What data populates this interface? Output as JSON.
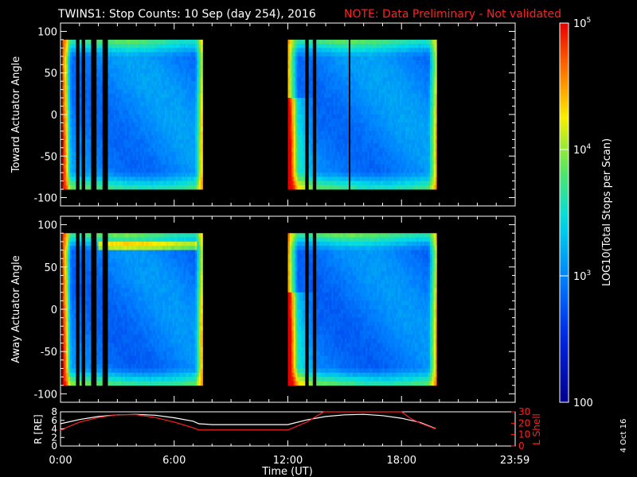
{
  "title": "TWINS1: Stop Counts: 10 Sep (day 254), 2016",
  "note": "NOTE: Data Preliminary - Not validated",
  "colors": {
    "note": "#ff2020",
    "orbit_r": "#ffffff",
    "orbit_l": "#ff2020",
    "background": "#000000",
    "axes": "#ffffff"
  },
  "colorbar": {
    "label": "LOG10(Total Stops per Scan)",
    "scale": "log",
    "range": [
      100,
      100000
    ],
    "ticks": [
      {
        "value": 100,
        "label": "100"
      },
      {
        "value": 1000,
        "label": "10^3"
      },
      {
        "value": 10000,
        "label": "10^4"
      },
      {
        "value": 100000,
        "label": "10^5"
      }
    ]
  },
  "xaxis": {
    "label": "Time (UT)",
    "range_hours": [
      0,
      24
    ],
    "ticks": [
      {
        "hour": 0,
        "label": "0:00"
      },
      {
        "hour": 6,
        "label": "6:00"
      },
      {
        "hour": 12,
        "label": "12:00"
      },
      {
        "hour": 18,
        "label": "18:00"
      },
      {
        "hour": 23.983,
        "label": "23:59"
      }
    ]
  },
  "side_stamp": "4 Oct 16",
  "chart_data": [
    {
      "type": "heatmap",
      "ylabel": "Toward Actuator Angle",
      "ylim": [
        -110,
        110
      ],
      "yticks": [
        -100,
        -50,
        0,
        50,
        100
      ],
      "angle_range": [
        -90,
        90
      ],
      "data_segments_hours": [
        [
          0.1,
          7.5
        ],
        [
          12.0,
          19.85
        ]
      ],
      "gaps_hours": [
        [
          0.85,
          1.0
        ],
        [
          1.15,
          1.35
        ],
        [
          1.65,
          1.9
        ],
        [
          2.25,
          2.5
        ],
        [
          12.9,
          13.05
        ],
        [
          13.3,
          13.45
        ],
        [
          15.2,
          15.3
        ]
      ],
      "base_level_counts": 1000,
      "edge_level_counts": 6000,
      "peak_level_counts": 50000
    },
    {
      "type": "heatmap",
      "ylabel": "Away Actuator Angle",
      "ylim": [
        -110,
        110
      ],
      "yticks": [
        -100,
        -50,
        0,
        50,
        100
      ],
      "angle_range": [
        -90,
        90
      ],
      "data_segments_hours": [
        [
          0.1,
          7.5
        ],
        [
          12.0,
          19.85
        ]
      ],
      "gaps_hours": [
        [
          0.85,
          1.0
        ],
        [
          1.15,
          1.35
        ],
        [
          1.65,
          1.9
        ],
        [
          2.25,
          2.5
        ],
        [
          12.9,
          13.05
        ],
        [
          13.3,
          13.45
        ]
      ],
      "base_level_counts": 900,
      "edge_level_counts": 7000,
      "peak_level_counts": 60000
    },
    {
      "type": "line",
      "ylabel_left": "R [RE]",
      "ylabel_right": "L Shell",
      "yleft_ticks": [
        0,
        2,
        4,
        6,
        8
      ],
      "yleft_range": [
        0,
        8
      ],
      "yright_ticks": [
        0,
        10,
        20,
        30
      ],
      "yright_range": [
        0,
        30
      ],
      "series": [
        {
          "name": "R [RE]",
          "axis": "left",
          "x": [
            0,
            1,
            2,
            3,
            4,
            5,
            6,
            7,
            7.3,
            8,
            10,
            12,
            13,
            14,
            15,
            16,
            17,
            18,
            19,
            19.8
          ],
          "y": [
            5.2,
            6.2,
            6.9,
            7.3,
            7.4,
            7.2,
            6.6,
            5.8,
            5.2,
            5.0,
            5.0,
            5.0,
            6.1,
            6.9,
            7.3,
            7.4,
            7.1,
            6.5,
            5.5,
            4.1
          ]
        },
        {
          "name": "L Shell",
          "axis": "right",
          "x": [
            0,
            1,
            2,
            3,
            4,
            5,
            6,
            7,
            7.3,
            8,
            10,
            12,
            13,
            13.9,
            18,
            18.5,
            19,
            19.8
          ],
          "y": [
            14,
            21,
            25,
            27.5,
            27.5,
            25,
            21,
            16,
            14,
            14,
            14,
            14,
            21,
            30,
            30,
            24,
            20,
            15
          ]
        }
      ]
    }
  ]
}
